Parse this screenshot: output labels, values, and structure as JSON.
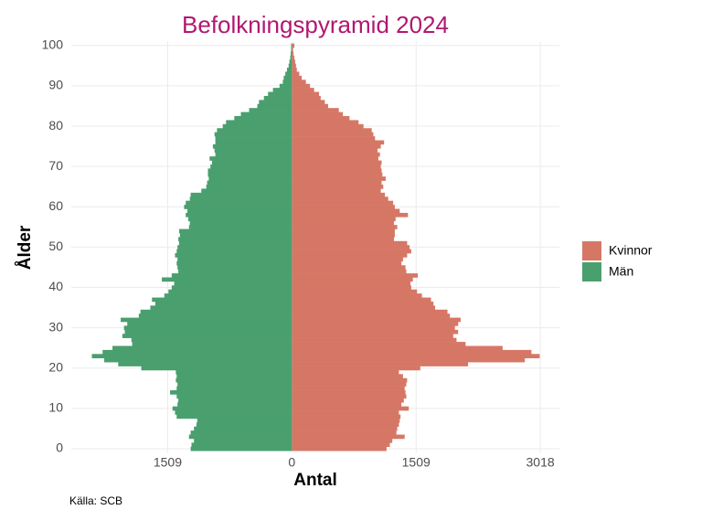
{
  "chart_data": {
    "type": "pyramid",
    "title": "Befolkningspyramid 2024",
    "x_label": "Antal",
    "y_label": "Ålder",
    "caption": "Källa: SCB",
    "x": [
      0,
      1,
      2,
      3,
      4,
      5,
      6,
      7,
      8,
      9,
      10,
      11,
      12,
      13,
      14,
      15,
      16,
      17,
      18,
      19,
      20,
      21,
      22,
      23,
      24,
      25,
      26,
      27,
      28,
      29,
      30,
      31,
      32,
      33,
      34,
      35,
      36,
      37,
      38,
      39,
      40,
      41,
      42,
      43,
      44,
      45,
      46,
      47,
      48,
      49,
      50,
      51,
      52,
      53,
      54,
      55,
      56,
      57,
      58,
      59,
      60,
      61,
      62,
      63,
      64,
      65,
      66,
      67,
      68,
      69,
      70,
      71,
      72,
      73,
      74,
      75,
      76,
      77,
      78,
      79,
      80,
      81,
      82,
      83,
      84,
      85,
      86,
      87,
      88,
      89,
      90,
      91,
      92,
      93,
      94,
      95,
      96,
      97,
      98,
      99,
      100
    ],
    "series": [
      {
        "name": "Kvinnor",
        "color": "#d67766",
        "values": [
          1150,
          1190,
          1220,
          1370,
          1270,
          1280,
          1300,
          1310,
          1320,
          1300,
          1420,
          1330,
          1360,
          1390,
          1380,
          1370,
          1390,
          1400,
          1350,
          1300,
          1560,
          2140,
          2830,
          3010,
          2910,
          2560,
          2110,
          2000,
          1960,
          2020,
          1980,
          2020,
          2050,
          1920,
          1890,
          1740,
          1720,
          1690,
          1580,
          1520,
          1450,
          1440,
          1470,
          1530,
          1390,
          1380,
          1330,
          1350,
          1400,
          1450,
          1430,
          1400,
          1240,
          1250,
          1250,
          1280,
          1240,
          1260,
          1410,
          1310,
          1250,
          1230,
          1170,
          1130,
          1080,
          1110,
          1090,
          1140,
          1100,
          1090,
          1080,
          1090,
          1050,
          1070,
          1040,
          1080,
          1120,
          1010,
          990,
          970,
          870,
          810,
          700,
          620,
          570,
          440,
          400,
          350,
          330,
          270,
          220,
          170,
          120,
          90,
          60,
          50,
          40,
          30,
          20,
          15,
          30
        ]
      },
      {
        "name": "Män",
        "color": "#4a9f6e",
        "values": [
          -1230,
          -1220,
          -1190,
          -1250,
          -1230,
          -1190,
          -1160,
          -1150,
          -1400,
          -1420,
          -1450,
          -1390,
          -1380,
          -1400,
          -1480,
          -1400,
          -1390,
          -1410,
          -1400,
          -1410,
          -1830,
          -2110,
          -2280,
          -2430,
          -2300,
          -2180,
          -1940,
          -1950,
          -2060,
          -2030,
          -2040,
          -2000,
          -2080,
          -1860,
          -1840,
          -1720,
          -1660,
          -1700,
          -1550,
          -1500,
          -1460,
          -1430,
          -1580,
          -1460,
          -1380,
          -1390,
          -1400,
          -1390,
          -1420,
          -1400,
          -1390,
          -1370,
          -1380,
          -1360,
          -1370,
          -1250,
          -1240,
          -1260,
          -1290,
          -1270,
          -1310,
          -1290,
          -1240,
          -1230,
          -1100,
          -1040,
          -1030,
          -1010,
          -1020,
          -1020,
          -990,
          -970,
          -1000,
          -930,
          -940,
          -960,
          -930,
          -930,
          -940,
          -910,
          -840,
          -800,
          -700,
          -620,
          -520,
          -420,
          -400,
          -340,
          -290,
          -230,
          -150,
          -110,
          -100,
          -80,
          -60,
          -40,
          -30,
          -20,
          -15,
          -10,
          -10
        ]
      }
    ],
    "xlim": [
      -2680,
      3250
    ],
    "xticks": [
      {
        "value": -1509,
        "label": "1509"
      },
      0,
      1509,
      3018
    ],
    "ylim": [
      -1,
      101
    ],
    "yticks": [
      0,
      10,
      20,
      30,
      40,
      50,
      60,
      70,
      80,
      90,
      100
    ],
    "grid": true
  }
}
